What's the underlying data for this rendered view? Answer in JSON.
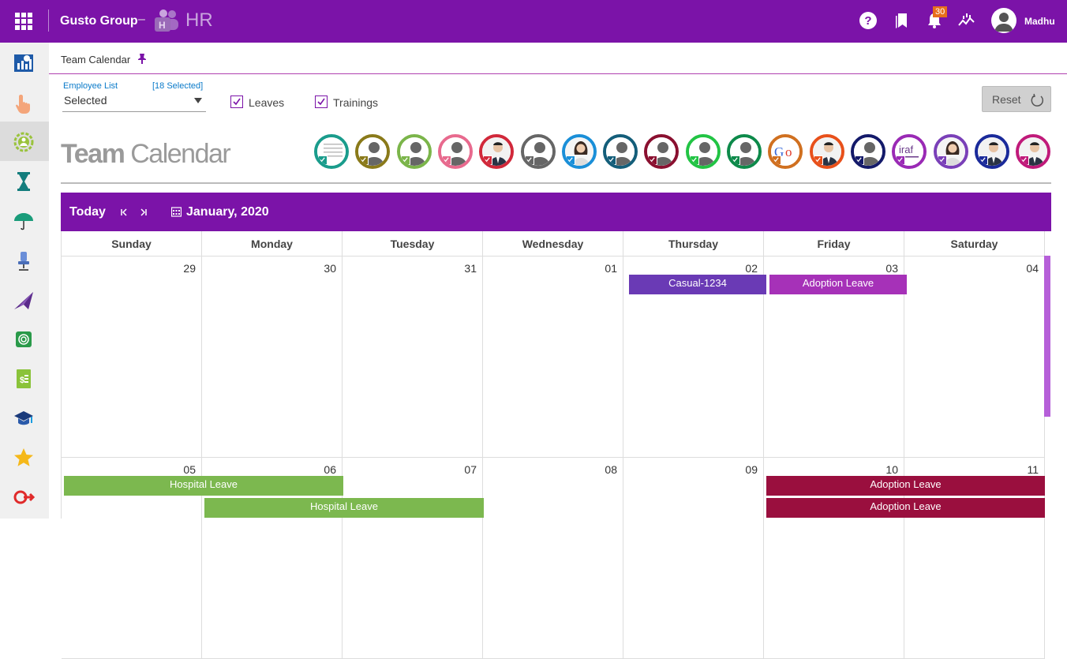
{
  "topbar": {
    "app_title": "Gusto Group",
    "dash": "–",
    "hr_label": "HR",
    "notification_count": "30",
    "username": "Madhu"
  },
  "subheader": {
    "title": "Team Calendar"
  },
  "filters": {
    "employee_list_label": "Employee List",
    "selected_count": "[18 Selected]",
    "employee_select_value": "Selected",
    "leaves_label": "Leaves",
    "leaves_checked": true,
    "trainings_label": "Trainings",
    "trainings_checked": true,
    "reset_label": "Reset"
  },
  "page_title": {
    "bold": "Team",
    "light": " Calendar"
  },
  "employee_avatars": [
    {
      "color": "#1a9c8c",
      "type": "doc"
    },
    {
      "color": "#8a7a1a",
      "type": "person"
    },
    {
      "color": "#7bb54a",
      "type": "person"
    },
    {
      "color": "#e86a8e",
      "type": "person"
    },
    {
      "color": "#d1283a",
      "type": "photo-man"
    },
    {
      "color": "#666666",
      "type": "person"
    },
    {
      "color": "#1a8fd8",
      "type": "photo-woman"
    },
    {
      "color": "#145e7a",
      "type": "person"
    },
    {
      "color": "#8a1030",
      "type": "person"
    },
    {
      "color": "#22c444",
      "type": "person"
    },
    {
      "color": "#0d8a4a",
      "type": "person"
    },
    {
      "color": "#d07020",
      "type": "google"
    },
    {
      "color": "#e8501a",
      "type": "photo-man"
    },
    {
      "color": "#141a6a",
      "type": "person"
    },
    {
      "color": "#9a2ab5",
      "type": "logo"
    },
    {
      "color": "#7a40b8",
      "type": "photo-woman"
    },
    {
      "color": "#1a2a9a",
      "type": "photo-man"
    },
    {
      "color": "#c01a7a",
      "type": "photo-man"
    }
  ],
  "calendar": {
    "today_label": "Today",
    "month_label": "January, 2020",
    "weekdays": [
      "Sunday",
      "Monday",
      "Tuesday",
      "Wednesday",
      "Thursday",
      "Friday",
      "Saturday"
    ],
    "week1": [
      "29",
      "30",
      "31",
      "01",
      "02",
      "03",
      "04"
    ],
    "week2": [
      "05",
      "06",
      "07",
      "08",
      "09",
      "10",
      "11"
    ],
    "events": [
      {
        "label": "Casual-1234",
        "color": "#6a3ab5",
        "week": 1,
        "day": 4
      },
      {
        "label": "Adoption Leave",
        "color": "#a631b8",
        "week": 1,
        "day": 5
      },
      {
        "label": "Hospital Leave",
        "color": "#7cb84f",
        "week": 2,
        "day": 0,
        "row": 0,
        "span": 2
      },
      {
        "label": "Hospital Leave",
        "color": "#7cb84f",
        "week": 2,
        "day": 1,
        "row": 1,
        "span": 2
      },
      {
        "label": "Adoption Leave",
        "color": "#9a0f3e",
        "week": 2,
        "day": 5,
        "row": 0,
        "span": 2
      },
      {
        "label": "Adoption Leave",
        "color": "#9a0f3e",
        "week": 2,
        "day": 5,
        "row": 1,
        "span": 2
      }
    ]
  }
}
